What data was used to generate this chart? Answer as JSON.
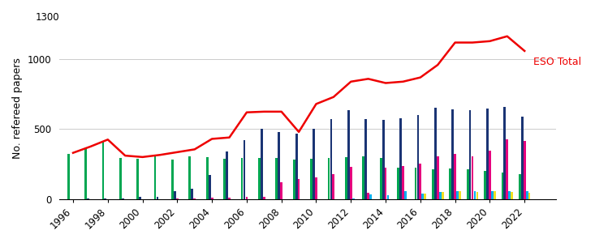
{
  "years": [
    1996,
    1997,
    1998,
    1999,
    2000,
    2001,
    2002,
    2003,
    2004,
    2005,
    2006,
    2007,
    2008,
    2009,
    2010,
    2011,
    2012,
    2013,
    2014,
    2015,
    2016,
    2017,
    2018,
    2019,
    2020,
    2021,
    2022
  ],
  "eso_total": [
    330,
    375,
    425,
    310,
    300,
    315,
    335,
    355,
    430,
    440,
    620,
    625,
    625,
    480,
    680,
    730,
    840,
    860,
    830,
    840,
    870,
    960,
    1120,
    1120,
    1130,
    1165,
    1060
  ],
  "bar_series": {
    "green": [
      325,
      365,
      415,
      295,
      290,
      310,
      280,
      305,
      300,
      285,
      295,
      295,
      295,
      280,
      290,
      295,
      300,
      305,
      295,
      225,
      225,
      215,
      220,
      210,
      200,
      190,
      180
    ],
    "navy": [
      0,
      5,
      5,
      5,
      15,
      15,
      55,
      75,
      170,
      340,
      420,
      500,
      480,
      465,
      505,
      570,
      635,
      570,
      565,
      575,
      600,
      655,
      640,
      635,
      645,
      660,
      590
    ],
    "magenta": [
      0,
      0,
      0,
      0,
      0,
      0,
      5,
      5,
      10,
      10,
      15,
      15,
      120,
      140,
      155,
      175,
      230,
      45,
      225,
      235,
      255,
      305,
      325,
      305,
      345,
      425,
      415
    ],
    "cyan": [
      0,
      0,
      0,
      0,
      0,
      0,
      0,
      0,
      0,
      0,
      0,
      0,
      0,
      0,
      0,
      0,
      5,
      35,
      25,
      55,
      40,
      50,
      55,
      55,
      55,
      55,
      55
    ],
    "yellow": [
      0,
      0,
      0,
      0,
      0,
      0,
      0,
      0,
      0,
      0,
      0,
      0,
      0,
      0,
      0,
      0,
      0,
      0,
      0,
      0,
      40,
      50,
      55,
      50,
      55,
      50,
      45
    ]
  },
  "bar_colors": {
    "green": "#00a651",
    "navy": "#1a3474",
    "magenta": "#e6007e",
    "cyan": "#00aeef",
    "yellow": "#f0e020"
  },
  "line_color": "#ee0000",
  "line_label": "ESO Total",
  "ylabel": "No. refereed papers",
  "ylim": [
    0,
    1300
  ],
  "yticks": [
    0,
    500,
    1000
  ],
  "background_color": "#ffffff",
  "label_fontsize": 9,
  "tick_fontsize": 8.5,
  "legend_fontsize": 9
}
